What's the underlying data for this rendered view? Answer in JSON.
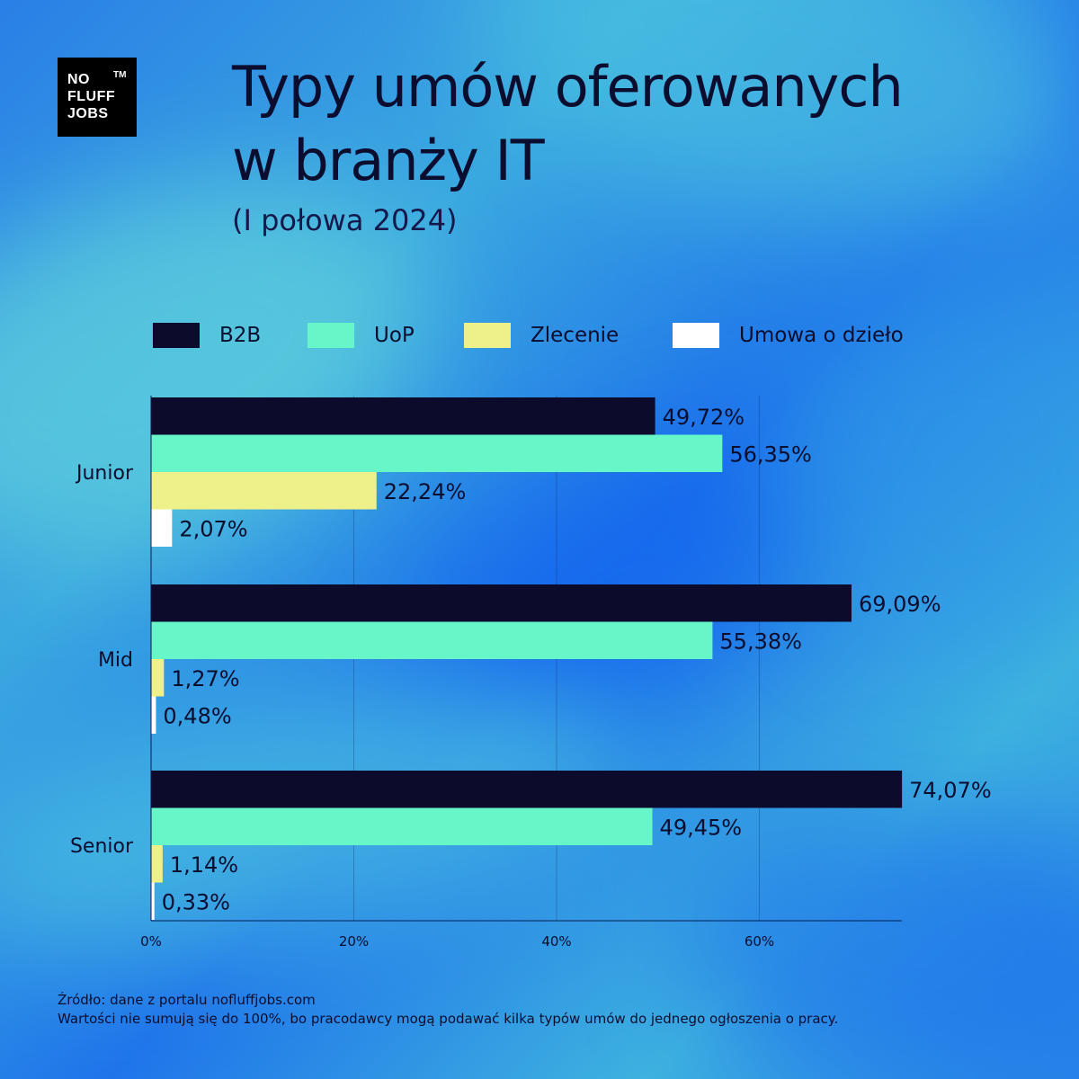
{
  "logo": {
    "line1": "NO",
    "line2": "FLUFF",
    "line3": "JOBS",
    "tm": "TM"
  },
  "title_line1": "Typy umów oferowanych",
  "title_line2": "w branży IT",
  "subtitle": "(I połowa 2024)",
  "footer": {
    "source": "Źródło: dane z portalu nofluffjobs.com",
    "note": "Wartości nie sumują się do 100%, bo pracodawcy mogą podawać kilka typów umów do jednego ogłoszenia o pracy."
  },
  "chart_data": {
    "type": "bar",
    "orientation": "horizontal",
    "categories": [
      "Junior",
      "Mid",
      "Senior"
    ],
    "series": [
      {
        "name": "B2B",
        "color": "#0c0b2b",
        "values": [
          49.72,
          69.09,
          74.07
        ],
        "labels": [
          "49,72%",
          "69,09%",
          "74,07%"
        ]
      },
      {
        "name": "UoP",
        "color": "#66f6c8",
        "values": [
          56.35,
          55.38,
          49.45
        ],
        "labels": [
          "56,35%",
          "55,38%",
          "49,45%"
        ]
      },
      {
        "name": "Zlecenie",
        "color": "#eef08a",
        "values": [
          22.24,
          1.27,
          1.14
        ],
        "labels": [
          "22,24%",
          "1,27%",
          "1,14%"
        ]
      },
      {
        "name": "Umowa o dzieło",
        "color": "#ffffff",
        "values": [
          2.07,
          0.48,
          0.33
        ],
        "labels": [
          "2,07%",
          "0,48%",
          "0,33%"
        ]
      }
    ],
    "x_ticks": [
      0,
      20,
      40,
      60
    ],
    "x_tick_labels": [
      "0%",
      "20%",
      "40%",
      "60%"
    ],
    "xlim": [
      0,
      74.07
    ],
    "grid": true,
    "legend_position": "top"
  }
}
